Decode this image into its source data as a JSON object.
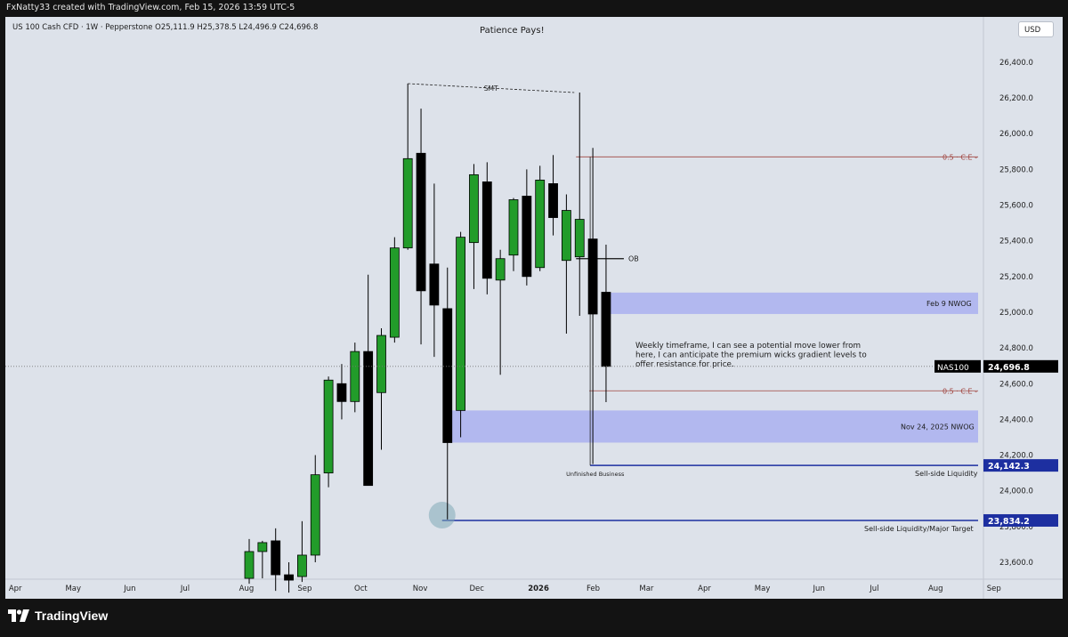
{
  "header": {
    "author_line": "FxNatty33 created with TradingView.com, Feb 15, 2026 13:59 UTC-5"
  },
  "symbol_line": "US 100 Cash CFD · 1W · Pepperstone  O25,111.9  H25,378.5  L24,496.9  C24,696.8",
  "currency": "USD",
  "footer": {
    "brand": "TradingView"
  },
  "colors": {
    "up": "#229c2a",
    "down": "#000000",
    "zone": "#aab0f0",
    "ce_line": "#a0443f",
    "liquidity_line": "#1d2fa0",
    "background": "#dde2ea"
  },
  "chart_data": {
    "type": "candlestick",
    "title": "Patience Pays!",
    "ylim": [
      23500,
      26600
    ],
    "y_ticks": [
      "23,600.0",
      "23,800.0",
      "24,000.0",
      "24,200.0",
      "24,400.0",
      "24,600.0",
      "24,800.0",
      "25,000.0",
      "25,200.0",
      "25,400.0",
      "25,600.0",
      "25,800.0",
      "26,000.0",
      "26,200.0",
      "26,400.0"
    ],
    "y_tick_values": [
      23600,
      23800,
      24000,
      24200,
      24400,
      24600,
      24800,
      25000,
      25200,
      25400,
      25600,
      25800,
      26000,
      26200,
      26400
    ],
    "x_labels": [
      "Apr",
      "May",
      "Jun",
      "Jul",
      "Aug",
      "Sep",
      "Oct",
      "Nov",
      "Dec",
      "2026",
      "Feb",
      "Mar",
      "Apr",
      "May",
      "Jun",
      "Jul",
      "Aug",
      "Sep"
    ],
    "candles": [
      {
        "date": "2025-08-04",
        "o": 23510,
        "h": 23730,
        "l": 23480,
        "c": 23660
      },
      {
        "date": "2025-08-11",
        "o": 23660,
        "h": 23720,
        "l": 23510,
        "c": 23710
      },
      {
        "date": "2025-08-18",
        "o": 23720,
        "h": 23790,
        "l": 23440,
        "c": 23530
      },
      {
        "date": "2025-08-25",
        "o": 23530,
        "h": 23600,
        "l": 23430,
        "c": 23500
      },
      {
        "date": "2025-09-01",
        "o": 23520,
        "h": 23830,
        "l": 23490,
        "c": 23640
      },
      {
        "date": "2025-09-08",
        "o": 23640,
        "h": 24200,
        "l": 23600,
        "c": 24090
      },
      {
        "date": "2025-09-15",
        "o": 24100,
        "h": 24640,
        "l": 24020,
        "c": 24620
      },
      {
        "date": "2025-09-22",
        "o": 24600,
        "h": 24710,
        "l": 24400,
        "c": 24500
      },
      {
        "date": "2025-09-29",
        "o": 24500,
        "h": 24830,
        "l": 24440,
        "c": 24780
      },
      {
        "date": "2025-10-06",
        "o": 24780,
        "h": 25210,
        "l": 24030,
        "c": 24030
      },
      {
        "date": "2025-10-13",
        "o": 24550,
        "h": 24910,
        "l": 24230,
        "c": 24870
      },
      {
        "date": "2025-10-20",
        "o": 24860,
        "h": 25420,
        "l": 24830,
        "c": 25360
      },
      {
        "date": "2025-10-27",
        "o": 25360,
        "h": 26280,
        "l": 25350,
        "c": 25860
      },
      {
        "date": "2025-11-03",
        "o": 25890,
        "h": 26140,
        "l": 24820,
        "c": 25120
      },
      {
        "date": "2025-11-10",
        "o": 25270,
        "h": 25720,
        "l": 24750,
        "c": 25040
      },
      {
        "date": "2025-11-17",
        "o": 25020,
        "h": 25250,
        "l": 23840,
        "c": 24270
      },
      {
        "date": "2025-11-24",
        "o": 24450,
        "h": 25450,
        "l": 24300,
        "c": 25420
      },
      {
        "date": "2025-12-01",
        "o": 25390,
        "h": 25830,
        "l": 25130,
        "c": 25770
      },
      {
        "date": "2025-12-08",
        "o": 25730,
        "h": 25840,
        "l": 25100,
        "c": 25190
      },
      {
        "date": "2025-12-15",
        "o": 25180,
        "h": 25350,
        "l": 24650,
        "c": 25300
      },
      {
        "date": "2025-12-22",
        "o": 25320,
        "h": 25640,
        "l": 25230,
        "c": 25630
      },
      {
        "date": "2025-12-29",
        "o": 25650,
        "h": 25800,
        "l": 25150,
        "c": 25200
      },
      {
        "date": "2026-01-05",
        "o": 25250,
        "h": 25820,
        "l": 25230,
        "c": 25740
      },
      {
        "date": "2026-01-12",
        "o": 25720,
        "h": 25880,
        "l": 25430,
        "c": 25530
      },
      {
        "date": "2026-01-19",
        "o": 25290,
        "h": 25660,
        "l": 24880,
        "c": 25570
      },
      {
        "date": "2026-01-26",
        "o": 25310,
        "h": 26230,
        "l": 24980,
        "c": 25520
      },
      {
        "date": "2026-02-02",
        "o": 25410,
        "h": 25920,
        "l": 24150,
        "c": 24990
      },
      {
        "date": "2026-02-09",
        "o": 25111.9,
        "h": 25378.5,
        "l": 24496.9,
        "c": 24696.8
      }
    ],
    "annotations": {
      "smt": "SMT",
      "ob": "OB",
      "ce_upper": "0.5 · C.E -",
      "ce_lower": "0.5 · C.E -",
      "zone_feb9": "Feb 9 NWOG",
      "zone_nov24": "Nov 24, 2025 NWOG",
      "commentary": [
        "Weekly timeframe, I can see a potential move lower from",
        "here, I can anticipate the premium wicks gradient levels to",
        "offer resistance for price."
      ],
      "unfinished": "Unfinished Business",
      "ssl1": "Sell-side Liquidity",
      "ssl2": "Sell-side Liquidity/Major Target"
    },
    "levels": {
      "smt_left": 26280,
      "smt_right": 26230,
      "ce_upper": 25870,
      "ce_lower": 24560,
      "ob": 25300,
      "zone_feb9": [
        24990,
        25110
      ],
      "zone_nov24": [
        24270,
        24450
      ],
      "ssl1": 24142.3,
      "ssl2": 23834.2
    },
    "price_labels": {
      "symbol_tag": "NAS100",
      "last": "24,696.8",
      "last_value": 24696.8,
      "ssl1": "24,142.3",
      "ssl2": "23,834.2"
    }
  }
}
